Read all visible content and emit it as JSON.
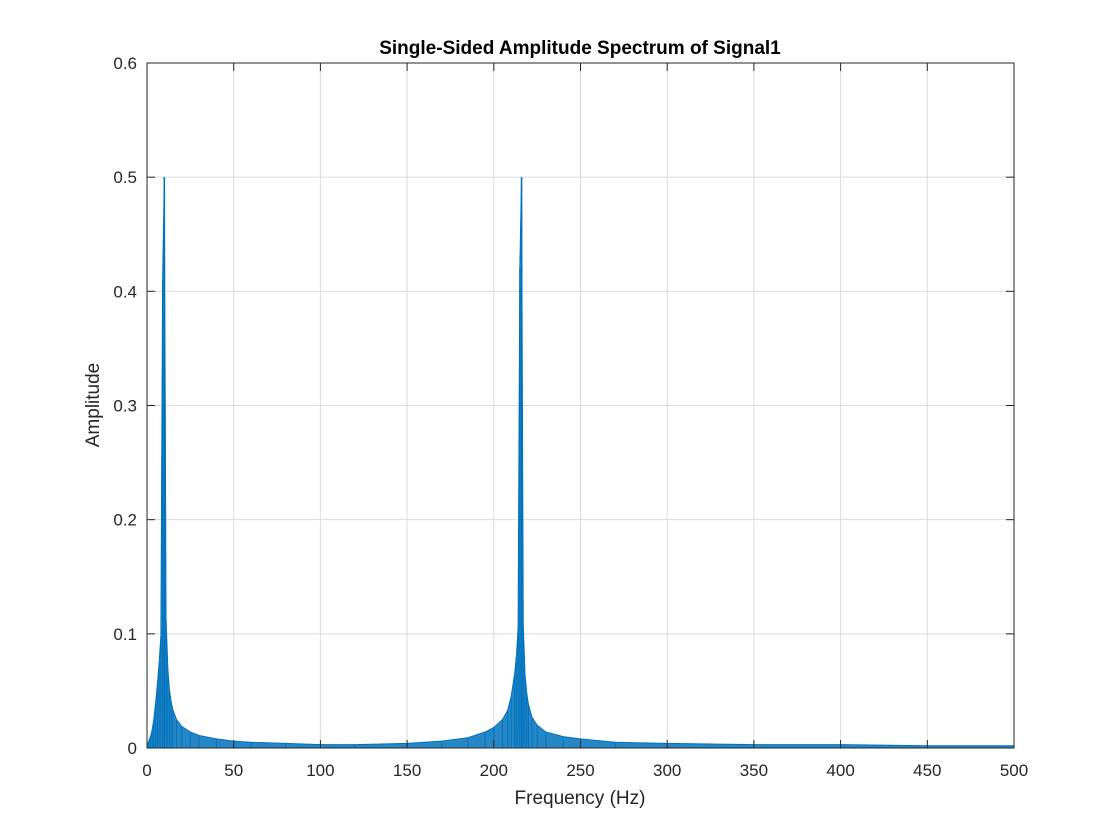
{
  "chart_data": {
    "type": "line",
    "title": "Single-Sided Amplitude Spectrum of Signal1",
    "xlabel": "Frequency (Hz)",
    "ylabel": "Amplitude",
    "xlim": [
      0,
      500
    ],
    "ylim": [
      0,
      0.6
    ],
    "xticks": [
      0,
      50,
      100,
      150,
      200,
      250,
      300,
      350,
      400,
      450,
      500
    ],
    "yticks": [
      0,
      0.1,
      0.2,
      0.3,
      0.4,
      0.5,
      0.6
    ],
    "xtick_labels": [
      "0",
      "50",
      "100",
      "150",
      "200",
      "250",
      "300",
      "350",
      "400",
      "450",
      "500"
    ],
    "ytick_labels": [
      "0",
      "0.1",
      "0.2",
      "0.3",
      "0.4",
      "0.5",
      "0.6"
    ],
    "grid": true,
    "legend": "none",
    "line_color": "#0072BD",
    "series": [
      {
        "peaks": [
          {
            "frequency": 10,
            "amplitude": 0.5
          },
          {
            "frequency": 216,
            "amplitude": 0.5
          }
        ],
        "x": [
          0,
          1,
          2,
          3,
          4,
          5,
          6,
          7,
          8,
          9,
          10,
          11,
          12,
          13,
          14,
          15,
          17,
          20,
          25,
          30,
          40,
          50,
          60,
          80,
          100,
          120,
          150,
          170,
          185,
          195,
          200,
          205,
          208,
          210,
          212,
          213,
          214,
          215,
          216,
          217,
          218,
          219,
          220,
          222,
          225,
          230,
          240,
          250,
          270,
          300,
          350,
          400,
          450,
          500
        ],
        "y": [
          0.002,
          0.006,
          0.01,
          0.016,
          0.026,
          0.04,
          0.056,
          0.075,
          0.098,
          0.41,
          0.5,
          0.113,
          0.07,
          0.05,
          0.04,
          0.033,
          0.025,
          0.019,
          0.014,
          0.011,
          0.008,
          0.006,
          0.005,
          0.004,
          0.003,
          0.003,
          0.004,
          0.006,
          0.009,
          0.014,
          0.018,
          0.025,
          0.033,
          0.045,
          0.065,
          0.08,
          0.105,
          0.42,
          0.5,
          0.107,
          0.065,
          0.048,
          0.038,
          0.027,
          0.02,
          0.014,
          0.01,
          0.008,
          0.005,
          0.004,
          0.003,
          0.003,
          0.002,
          0.002
        ]
      }
    ]
  }
}
